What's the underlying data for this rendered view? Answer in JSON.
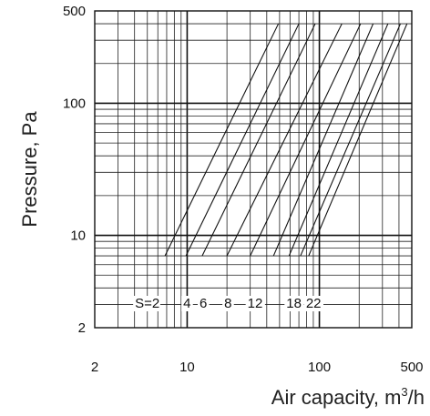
{
  "chart_data": {
    "type": "line",
    "title": "",
    "xlabel": "Air capacity, m",
    "xlabel_sup": "3",
    "xlabel_unit": "/h",
    "ylabel": "Pressure, Pa",
    "xscale": "log",
    "yscale": "log",
    "xlim": [
      2,
      500
    ],
    "ylim": [
      2,
      500
    ],
    "x_ticks": [
      2,
      10,
      100,
      500
    ],
    "x_tick_labels": [
      "2",
      "10",
      "100",
      "500"
    ],
    "y_ticks": [
      2,
      10,
      100,
      500
    ],
    "y_tick_labels": [
      "2",
      "10",
      "100",
      "500"
    ],
    "grid": true,
    "series_label_prefix": "S=",
    "series": [
      {
        "name": "2",
        "x": [
          6.8,
          49
        ],
        "y": [
          7,
          400
        ]
      },
      {
        "name": "4",
        "x": [
          9.8,
          70
        ],
        "y": [
          7,
          400
        ]
      },
      {
        "name": "6",
        "x": [
          13,
          93
        ],
        "y": [
          7,
          400
        ]
      },
      {
        "name": "8",
        "x": [
          20,
          148
        ],
        "y": [
          7,
          400
        ]
      },
      {
        "name": "12",
        "x": [
          30,
          205
        ],
        "y": [
          7,
          400
        ]
      },
      {
        "name": "",
        "x": [
          45,
          255
        ],
        "y": [
          7,
          400
        ]
      },
      {
        "name": "18",
        "x": [
          59,
          330
        ],
        "y": [
          7,
          400
        ]
      },
      {
        "name": "",
        "x": [
          72,
          410
        ],
        "y": [
          7,
          400
        ]
      },
      {
        "name": "22",
        "x": [
          83,
          460
        ],
        "y": [
          7,
          400
        ]
      }
    ]
  }
}
